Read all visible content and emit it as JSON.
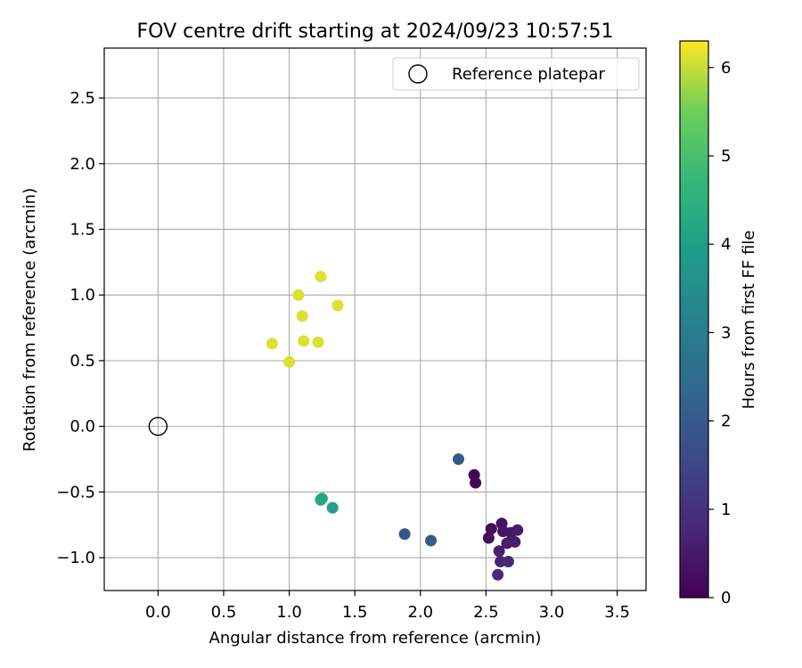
{
  "chart_data": {
    "type": "scatter",
    "title": "FOV centre drift starting at 2024/09/23 10:57:51",
    "xlabel": "Angular distance from reference (arcmin)",
    "ylabel": "Rotation from reference (arcmin)",
    "xlim": [
      -0.41,
      3.72
    ],
    "ylim": [
      -1.25,
      2.88
    ],
    "x_ticks": [
      0.0,
      0.5,
      1.0,
      1.5,
      2.0,
      2.5,
      3.0,
      3.5
    ],
    "x_tick_labels": [
      "0.0",
      "0.5",
      "1.0",
      "1.5",
      "2.0",
      "2.5",
      "3.0",
      "3.5"
    ],
    "y_ticks": [
      -1.0,
      -0.5,
      0.0,
      0.5,
      1.0,
      1.5,
      2.0,
      2.5
    ],
    "y_tick_labels": [
      "−1.0",
      "−0.5",
      "0.0",
      "0.5",
      "1.0",
      "1.5",
      "2.0",
      "2.5"
    ],
    "grid": true,
    "legend": {
      "position": "top-right",
      "entries": [
        "Reference platepar"
      ]
    },
    "reference_point": {
      "name": "Reference platepar",
      "x": 0.0,
      "y": 0.0
    },
    "colorbar": {
      "label": "Hours from first FF file",
      "range": [
        0,
        6.3
      ],
      "ticks": [
        0,
        1,
        2,
        3,
        4,
        5,
        6
      ],
      "tick_labels": [
        "0",
        "1",
        "2",
        "3",
        "4",
        "5",
        "6"
      ],
      "colormap": "viridis"
    },
    "points": [
      {
        "x": 2.41,
        "y": -0.37,
        "hours": 0.05
      },
      {
        "x": 2.42,
        "y": -0.43,
        "hours": 0.1
      },
      {
        "x": 2.54,
        "y": -0.78,
        "hours": 0.2
      },
      {
        "x": 2.52,
        "y": -0.85,
        "hours": 0.25
      },
      {
        "x": 2.62,
        "y": -0.74,
        "hours": 0.35
      },
      {
        "x": 2.63,
        "y": -0.8,
        "hours": 0.4
      },
      {
        "x": 2.69,
        "y": -0.81,
        "hours": 0.45
      },
      {
        "x": 2.74,
        "y": -0.79,
        "hours": 0.5
      },
      {
        "x": 2.66,
        "y": -0.89,
        "hours": 0.55
      },
      {
        "x": 2.72,
        "y": -0.88,
        "hours": 0.6
      },
      {
        "x": 2.6,
        "y": -0.95,
        "hours": 0.65
      },
      {
        "x": 2.61,
        "y": -1.03,
        "hours": 0.75
      },
      {
        "x": 2.67,
        "y": -1.03,
        "hours": 0.8
      },
      {
        "x": 2.59,
        "y": -1.13,
        "hours": 0.85
      },
      {
        "x": 2.29,
        "y": -0.25,
        "hours": 2.0
      },
      {
        "x": 1.88,
        "y": -0.82,
        "hours": 1.9
      },
      {
        "x": 2.08,
        "y": -0.87,
        "hours": 2.0
      },
      {
        "x": 1.25,
        "y": -0.55,
        "hours": 4.2
      },
      {
        "x": 1.24,
        "y": -0.56,
        "hours": 4.2
      },
      {
        "x": 1.33,
        "y": -0.62,
        "hours": 4.0
      },
      {
        "x": 0.87,
        "y": 0.63,
        "hours": 6.1
      },
      {
        "x": 1.0,
        "y": 0.49,
        "hours": 6.1
      },
      {
        "x": 1.07,
        "y": 1.0,
        "hours": 6.1
      },
      {
        "x": 1.1,
        "y": 0.84,
        "hours": 6.1
      },
      {
        "x": 1.11,
        "y": 0.65,
        "hours": 6.1
      },
      {
        "x": 1.22,
        "y": 0.64,
        "hours": 6.1
      },
      {
        "x": 1.24,
        "y": 1.14,
        "hours": 6.1
      },
      {
        "x": 1.37,
        "y": 0.92,
        "hours": 6.1
      }
    ]
  }
}
